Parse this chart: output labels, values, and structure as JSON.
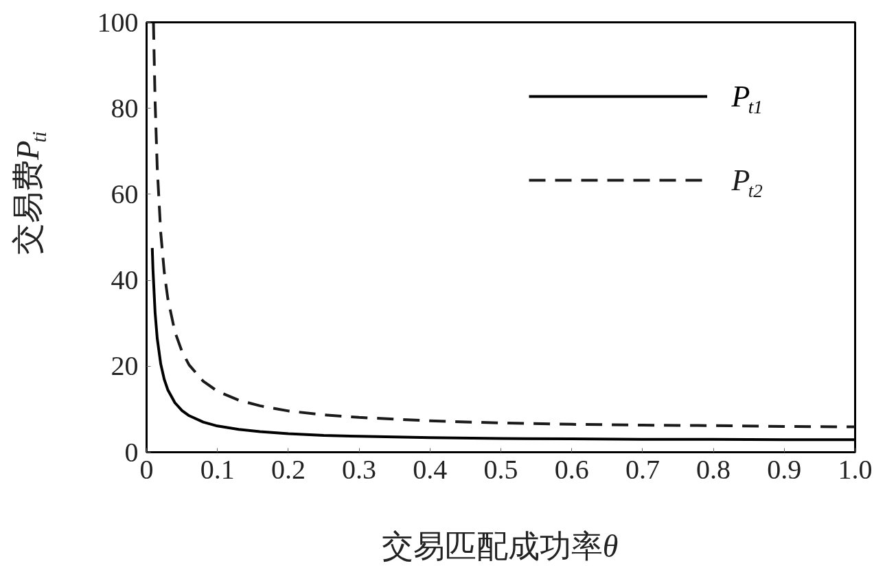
{
  "chart_data": {
    "type": "line",
    "xlabel": "交易匹配成功率θ",
    "ylabel": "交易费P$_{ti}$",
    "xlim": [
      0,
      1
    ],
    "ylim": [
      0,
      100
    ],
    "xticks": [
      0,
      0.1,
      0.2,
      0.3,
      0.4,
      0.5,
      0.6,
      0.7,
      0.8,
      0.9,
      {
        "value": 1,
        "label": "1.0"
      }
    ],
    "yticks": [
      0,
      20,
      40,
      60,
      80,
      100
    ],
    "grid": false,
    "legend": "top right",
    "series": [
      {
        "name": "P$_{t1}$",
        "color": "#000000",
        "line_style": "solid",
        "x": [
          0.008,
          0.009,
          0.012,
          0.015,
          0.02,
          0.025,
          0.03,
          0.04,
          0.05,
          0.06,
          0.08,
          0.1,
          0.13,
          0.16,
          0.2,
          0.25,
          0.3,
          0.4,
          0.5,
          0.6,
          0.7,
          0.8,
          0.9,
          1.0
        ],
        "values": [
          47.5,
          42.5,
          32.5,
          26.5,
          20.5,
          16.9,
          14.5,
          11.5,
          9.7,
          8.5,
          7.0,
          6.1,
          5.3,
          4.8,
          4.3,
          3.9,
          3.7,
          3.4,
          3.2,
          3.1,
          3.0,
          3.0,
          2.9,
          2.9
        ]
      },
      {
        "name": "P$_{t2}$",
        "color": "#1a1a1a",
        "line_style": "dashed",
        "x": [
          0.0097,
          0.012,
          0.015,
          0.02,
          0.025,
          0.03,
          0.04,
          0.05,
          0.06,
          0.08,
          0.1,
          0.13,
          0.16,
          0.2,
          0.25,
          0.3,
          0.4,
          0.5,
          0.6,
          0.7,
          0.8,
          0.9,
          1.0
        ],
        "values": [
          99.8,
          81.7,
          66.3,
          51,
          41.8,
          35.7,
          28,
          23.4,
          20.3,
          16.5,
          14.2,
          12.1,
          10.8,
          9.6,
          8.7,
          8.1,
          7.3,
          6.8,
          6.5,
          6.3,
          6.2,
          6.0,
          5.9
        ]
      }
    ]
  }
}
